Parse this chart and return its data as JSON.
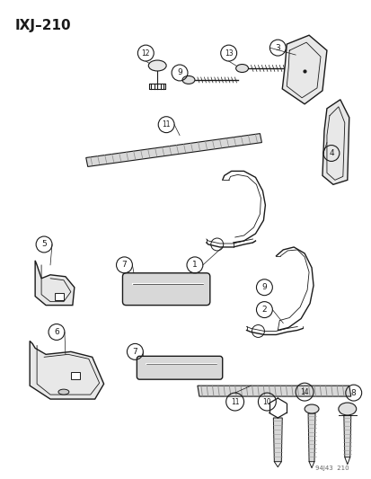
{
  "title": "IXJ–210",
  "footer": "94J43  210",
  "bg_color": "#ffffff",
  "line_color": "#1a1a1a",
  "label_color": "#1a1a1a",
  "fig_w": 4.14,
  "fig_h": 5.33,
  "dpi": 100
}
